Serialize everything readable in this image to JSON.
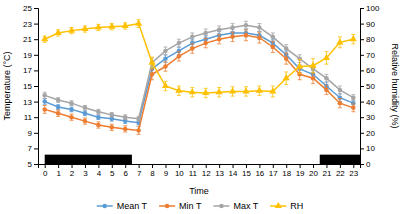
{
  "chart_data": {
    "type": "line",
    "xlabel": "Time",
    "ylabel": "Temperature (°C)",
    "y2label": "Relative humidity (%)",
    "x": [
      0,
      1,
      2,
      3,
      4,
      5,
      6,
      7,
      8,
      9,
      10,
      11,
      12,
      13,
      14,
      15,
      16,
      17,
      18,
      19,
      20,
      21,
      22,
      23
    ],
    "xlim": [
      -0.5,
      23.5
    ],
    "xticks": [
      0,
      1,
      2,
      3,
      4,
      5,
      6,
      7,
      8,
      9,
      10,
      11,
      12,
      13,
      14,
      15,
      16,
      17,
      18,
      19,
      20,
      21,
      22,
      23
    ],
    "ylim": [
      5,
      25
    ],
    "yticks": [
      5,
      7,
      9,
      11,
      13,
      15,
      17,
      19,
      21,
      23,
      25
    ],
    "y2lim": [
      0,
      100
    ],
    "y2ticks": [
      0,
      10,
      20,
      30,
      40,
      50,
      60,
      70,
      80,
      90,
      100
    ],
    "series": [
      {
        "name": "Mean T",
        "color": "#5B9BD5",
        "marker": "circle",
        "values": [
          13.0,
          12.3,
          12.0,
          11.5,
          11.0,
          10.8,
          10.5,
          10.3,
          17.2,
          18.5,
          19.5,
          20.5,
          21.0,
          21.5,
          21.8,
          21.8,
          21.5,
          20.5,
          19.0,
          17.2,
          16.5,
          15.0,
          13.5,
          12.8
        ],
        "errors": [
          0.4,
          0.3,
          0.3,
          0.3,
          0.3,
          0.3,
          0.3,
          0.3,
          0.6,
          0.5,
          0.5,
          0.5,
          0.5,
          0.5,
          0.5,
          0.5,
          0.5,
          0.5,
          0.5,
          0.5,
          0.5,
          0.5,
          0.5,
          0.4
        ]
      },
      {
        "name": "Min T",
        "color": "#ED7D31",
        "marker": "circle",
        "values": [
          12.0,
          11.5,
          11.0,
          10.5,
          10.0,
          9.7,
          9.5,
          9.3,
          16.5,
          17.5,
          18.8,
          19.8,
          20.5,
          21.0,
          21.3,
          21.5,
          21.2,
          20.0,
          18.5,
          16.5,
          16.0,
          14.5,
          12.8,
          12.2
        ],
        "errors": [
          0.5,
          0.4,
          0.4,
          0.4,
          0.4,
          0.4,
          0.4,
          0.5,
          0.7,
          0.6,
          0.6,
          0.6,
          0.6,
          0.6,
          0.6,
          0.7,
          0.7,
          0.7,
          0.7,
          0.7,
          0.7,
          0.6,
          0.6,
          0.5
        ]
      },
      {
        "name": "Max T",
        "color": "#A5A5A5",
        "marker": "circle",
        "values": [
          13.8,
          13.2,
          12.8,
          12.2,
          11.7,
          11.3,
          11.0,
          10.8,
          18.0,
          19.5,
          20.5,
          21.3,
          21.8,
          22.2,
          22.5,
          22.8,
          22.5,
          21.3,
          19.8,
          18.5,
          17.2,
          16.0,
          14.5,
          13.5
        ],
        "errors": [
          0.4,
          0.3,
          0.3,
          0.3,
          0.3,
          0.3,
          0.3,
          0.3,
          0.6,
          0.5,
          0.5,
          0.5,
          0.5,
          0.5,
          0.5,
          0.5,
          0.5,
          0.5,
          0.5,
          0.5,
          0.5,
          0.5,
          0.5,
          0.4
        ]
      },
      {
        "name": "RH",
        "color": "#FFC000",
        "marker": "triangle",
        "axis": "y2",
        "values": [
          80.0,
          84.0,
          85.5,
          86.5,
          87.5,
          88.0,
          88.5,
          90.0,
          65.0,
          50.0,
          47.0,
          46.0,
          45.5,
          46.0,
          46.5,
          46.5,
          47.0,
          46.5,
          55.0,
          62.5,
          63.0,
          68.0,
          78.0,
          80.0
        ],
        "errors": [
          2.0,
          2.0,
          2.0,
          2.0,
          2.0,
          2.0,
          2.0,
          2.5,
          3.5,
          3.0,
          3.0,
          3.0,
          3.0,
          3.0,
          3.0,
          3.0,
          3.0,
          3.5,
          4.0,
          4.5,
          4.5,
          4.0,
          3.5,
          3.0
        ]
      }
    ],
    "night_ranges": [
      [
        0,
        6.5
      ],
      [
        20.5,
        23.5
      ]
    ],
    "legend": "bottom"
  }
}
